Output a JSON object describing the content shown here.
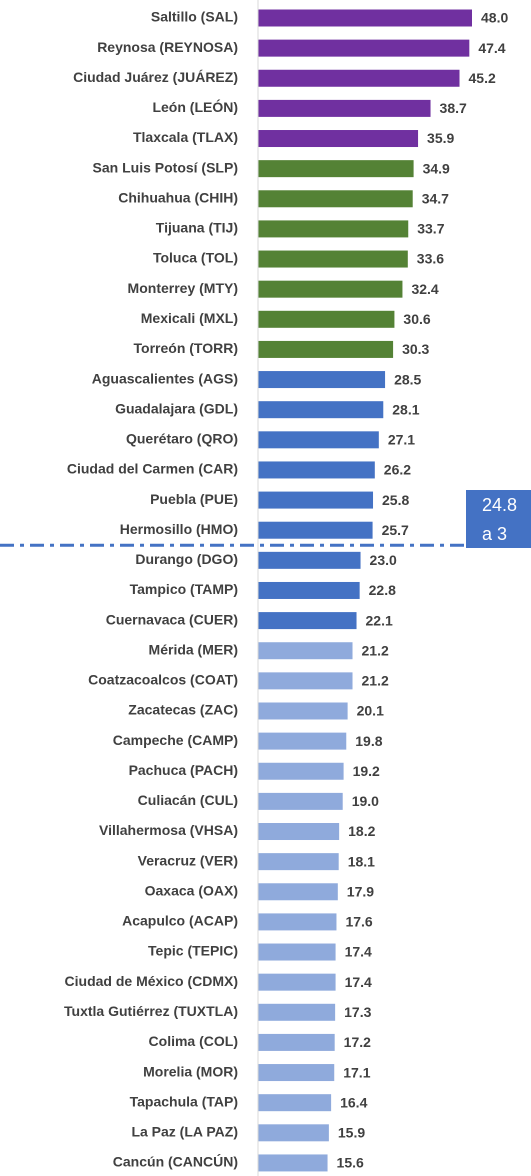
{
  "chart_data": {
    "type": "bar",
    "orientation": "horizontal",
    "categories": [
      "Saltillo (SAL)",
      "Reynosa (REYNOSA)",
      "Ciudad Juárez (JUÁREZ)",
      "León (LEÓN)",
      "Tlaxcala (TLAX)",
      "San Luis Potosí (SLP)",
      "Chihuahua (CHIH)",
      "Tijuana (TIJ)",
      "Toluca (TOL)",
      "Monterrey (MTY)",
      "Mexicali (MXL)",
      "Torreón (TORR)",
      "Aguascalientes (AGS)",
      "Guadalajara (GDL)",
      "Querétaro (QRO)",
      "Ciudad del Carmen (CAR)",
      "Puebla (PUE)",
      "Hermosillo (HMO)",
      "Durango (DGO)",
      "Tampico (TAMP)",
      "Cuernavaca (CUER)",
      "Mérida (MER)",
      "Coatzacoalcos (COAT)",
      "Zacatecas (ZAC)",
      "Campeche (CAMP)",
      "Pachuca (PACH)",
      "Culiacán (CUL)",
      "Villahermosa (VHSA)",
      "Veracruz (VER)",
      "Oaxaca (OAX)",
      "Acapulco (ACAP)",
      "Tepic (TEPIC)",
      "Ciudad de México (CDMX)",
      "Tuxtla Gutiérrez (TUXTLA)",
      "Colima (COL)",
      "Morelia (MOR)",
      "Tapachula (TAP)",
      "La Paz (LA PAZ)",
      "Cancún (CANCÚN)"
    ],
    "values": [
      48.0,
      47.4,
      45.2,
      38.7,
      35.9,
      34.9,
      34.7,
      33.7,
      33.6,
      32.4,
      30.6,
      30.3,
      28.5,
      28.1,
      27.1,
      26.2,
      25.8,
      25.7,
      23.0,
      22.8,
      22.1,
      21.2,
      21.2,
      20.1,
      19.8,
      19.2,
      19.0,
      18.2,
      18.1,
      17.9,
      17.6,
      17.4,
      17.4,
      17.3,
      17.2,
      17.1,
      16.4,
      15.9,
      15.6
    ],
    "value_labels": [
      "48.0",
      "47.4",
      "45.2",
      "38.7",
      "35.9",
      "34.9",
      "34.7",
      "33.7",
      "33.6",
      "32.4",
      "30.6",
      "30.3",
      "28.5",
      "28.1",
      "27.1",
      "26.2",
      "25.8",
      "25.7",
      "23.0",
      "22.8",
      "22.1",
      "21.2",
      "21.2",
      "20.1",
      "19.8",
      "19.2",
      "19.0",
      "18.2",
      "18.1",
      "17.9",
      "17.6",
      "17.4",
      "17.4",
      "17.3",
      "17.2",
      "17.1",
      "16.4",
      "15.9",
      "15.6"
    ],
    "colors": [
      "#7030a0",
      "#7030a0",
      "#7030a0",
      "#7030a0",
      "#7030a0",
      "#548235",
      "#548235",
      "#548235",
      "#548235",
      "#548235",
      "#548235",
      "#548235",
      "#4472c4",
      "#4472c4",
      "#4472c4",
      "#4472c4",
      "#4472c4",
      "#4472c4",
      "#4472c4",
      "#4472c4",
      "#4472c4",
      "#8faadc",
      "#8faadc",
      "#8faadc",
      "#8faadc",
      "#8faadc",
      "#8faadc",
      "#8faadc",
      "#8faadc",
      "#8faadc",
      "#8faadc",
      "#8faadc",
      "#8faadc",
      "#8faadc",
      "#8faadc",
      "#8faadc",
      "#8faadc",
      "#8faadc",
      "#8faadc"
    ],
    "xlim": [
      0,
      48
    ],
    "annotation": [
      "24.8",
      "a 3"
    ]
  }
}
